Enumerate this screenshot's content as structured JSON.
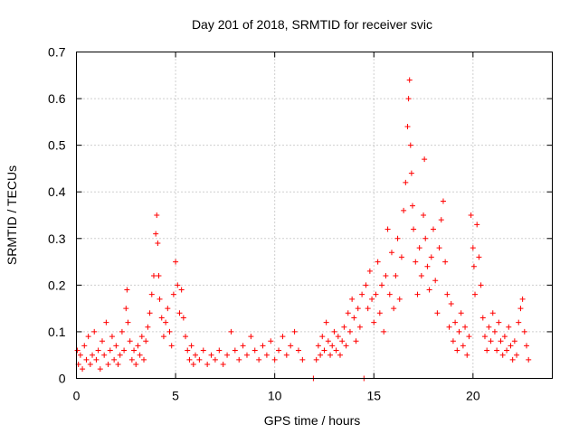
{
  "chart_data": {
    "type": "scatter",
    "title": "Day 201 of 2018, SRMTID for receiver svic",
    "xlabel": "GPS time / hours",
    "ylabel": "SRMTID / TECUs",
    "xlim": [
      0,
      24
    ],
    "ylim": [
      0,
      0.7
    ],
    "xticks": [
      "0",
      "5",
      "10",
      "15",
      "20"
    ],
    "yticks": [
      "0",
      "0.1",
      "0.2",
      "0.3",
      "0.4",
      "0.5",
      "0.6",
      "0.7"
    ],
    "xtick_values": [
      0,
      5,
      10,
      15,
      20
    ],
    "ytick_values": [
      0,
      0.1,
      0.2,
      0.3,
      0.4,
      0.5,
      0.6,
      0.7
    ],
    "grid": true,
    "marker": "+",
    "color": "#ff0000",
    "series": [
      {
        "name": "svic",
        "points": [
          [
            0.05,
            0.06
          ],
          [
            0.1,
            0.03
          ],
          [
            0.2,
            0.05
          ],
          [
            0.3,
            0.02
          ],
          [
            0.4,
            0.07
          ],
          [
            0.5,
            0.04
          ],
          [
            0.6,
            0.09
          ],
          [
            0.7,
            0.03
          ],
          [
            0.8,
            0.05
          ],
          [
            0.9,
            0.1
          ],
          [
            1.0,
            0.04
          ],
          [
            1.1,
            0.06
          ],
          [
            1.2,
            0.02
          ],
          [
            1.3,
            0.08
          ],
          [
            1.4,
            0.05
          ],
          [
            1.5,
            0.12
          ],
          [
            1.6,
            0.03
          ],
          [
            1.7,
            0.06
          ],
          [
            1.8,
            0.09
          ],
          [
            1.9,
            0.04
          ],
          [
            2.0,
            0.07
          ],
          [
            2.1,
            0.03
          ],
          [
            2.2,
            0.05
          ],
          [
            2.3,
            0.1
          ],
          [
            2.4,
            0.06
          ],
          [
            2.5,
            0.15
          ],
          [
            2.55,
            0.19
          ],
          [
            2.6,
            0.12
          ],
          [
            2.7,
            0.08
          ],
          [
            2.8,
            0.04
          ],
          [
            2.9,
            0.06
          ],
          [
            3.0,
            0.03
          ],
          [
            3.1,
            0.07
          ],
          [
            3.2,
            0.05
          ],
          [
            3.3,
            0.09
          ],
          [
            3.4,
            0.04
          ],
          [
            3.5,
            0.08
          ],
          [
            3.6,
            0.11
          ],
          [
            3.7,
            0.14
          ],
          [
            3.8,
            0.18
          ],
          [
            3.9,
            0.22
          ],
          [
            4.0,
            0.31
          ],
          [
            4.05,
            0.35
          ],
          [
            4.1,
            0.29
          ],
          [
            4.15,
            0.22
          ],
          [
            4.2,
            0.17
          ],
          [
            4.3,
            0.13
          ],
          [
            4.4,
            0.09
          ],
          [
            4.5,
            0.12
          ],
          [
            4.6,
            0.15
          ],
          [
            4.7,
            0.1
          ],
          [
            4.8,
            0.07
          ],
          [
            4.9,
            0.18
          ],
          [
            5.0,
            0.25
          ],
          [
            5.1,
            0.2
          ],
          [
            5.2,
            0.14
          ],
          [
            5.3,
            0.19
          ],
          [
            5.4,
            0.13
          ],
          [
            5.5,
            0.09
          ],
          [
            5.6,
            0.06
          ],
          [
            5.7,
            0.04
          ],
          [
            5.8,
            0.07
          ],
          [
            5.9,
            0.03
          ],
          [
            6.0,
            0.05
          ],
          [
            6.2,
            0.04
          ],
          [
            6.4,
            0.06
          ],
          [
            6.6,
            0.03
          ],
          [
            6.8,
            0.05
          ],
          [
            7.0,
            0.04
          ],
          [
            7.2,
            0.06
          ],
          [
            7.4,
            0.03
          ],
          [
            7.6,
            0.05
          ],
          [
            7.8,
            0.1
          ],
          [
            8.0,
            0.06
          ],
          [
            8.2,
            0.04
          ],
          [
            8.4,
            0.07
          ],
          [
            8.6,
            0.05
          ],
          [
            8.8,
            0.09
          ],
          [
            9.0,
            0.06
          ],
          [
            9.2,
            0.04
          ],
          [
            9.4,
            0.07
          ],
          [
            9.6,
            0.05
          ],
          [
            9.8,
            0.08
          ],
          [
            10.0,
            0.04
          ],
          [
            10.2,
            0.06
          ],
          [
            10.4,
            0.09
          ],
          [
            10.6,
            0.05
          ],
          [
            10.8,
            0.07
          ],
          [
            11.0,
            0.1
          ],
          [
            11.2,
            0.06
          ],
          [
            11.4,
            0.04
          ],
          [
            11.95,
            0.0
          ],
          [
            12.1,
            0.04
          ],
          [
            12.2,
            0.07
          ],
          [
            12.3,
            0.05
          ],
          [
            12.4,
            0.09
          ],
          [
            12.5,
            0.06
          ],
          [
            12.6,
            0.12
          ],
          [
            12.7,
            0.08
          ],
          [
            12.8,
            0.05
          ],
          [
            12.9,
            0.07
          ],
          [
            13.0,
            0.1
          ],
          [
            13.1,
            0.06
          ],
          [
            13.2,
            0.09
          ],
          [
            13.3,
            0.05
          ],
          [
            13.4,
            0.08
          ],
          [
            13.5,
            0.11
          ],
          [
            13.6,
            0.07
          ],
          [
            13.7,
            0.14
          ],
          [
            13.8,
            0.1
          ],
          [
            13.9,
            0.17
          ],
          [
            14.0,
            0.13
          ],
          [
            14.1,
            0.08
          ],
          [
            14.2,
            0.15
          ],
          [
            14.3,
            0.11
          ],
          [
            14.4,
            0.18
          ],
          [
            14.5,
            0.0
          ],
          [
            14.6,
            0.2
          ],
          [
            14.7,
            0.15
          ],
          [
            14.8,
            0.23
          ],
          [
            14.9,
            0.17
          ],
          [
            15.0,
            0.12
          ],
          [
            15.1,
            0.18
          ],
          [
            15.2,
            0.25
          ],
          [
            15.3,
            0.14
          ],
          [
            15.4,
            0.2
          ],
          [
            15.5,
            0.1
          ],
          [
            15.6,
            0.22
          ],
          [
            15.7,
            0.32
          ],
          [
            15.8,
            0.18
          ],
          [
            15.9,
            0.27
          ],
          [
            16.0,
            0.15
          ],
          [
            16.1,
            0.22
          ],
          [
            16.2,
            0.3
          ],
          [
            16.3,
            0.17
          ],
          [
            16.4,
            0.26
          ],
          [
            16.5,
            0.36
          ],
          [
            16.6,
            0.42
          ],
          [
            16.7,
            0.54
          ],
          [
            16.75,
            0.6
          ],
          [
            16.8,
            0.64
          ],
          [
            16.85,
            0.5
          ],
          [
            16.9,
            0.44
          ],
          [
            16.95,
            0.37
          ],
          [
            17.0,
            0.32
          ],
          [
            17.1,
            0.25
          ],
          [
            17.2,
            0.18
          ],
          [
            17.3,
            0.28
          ],
          [
            17.4,
            0.22
          ],
          [
            17.5,
            0.35
          ],
          [
            17.55,
            0.47
          ],
          [
            17.6,
            0.3
          ],
          [
            17.7,
            0.24
          ],
          [
            17.8,
            0.19
          ],
          [
            17.9,
            0.26
          ],
          [
            18.0,
            0.32
          ],
          [
            18.1,
            0.21
          ],
          [
            18.2,
            0.14
          ],
          [
            18.3,
            0.28
          ],
          [
            18.4,
            0.34
          ],
          [
            18.5,
            0.38
          ],
          [
            18.6,
            0.25
          ],
          [
            18.7,
            0.18
          ],
          [
            18.8,
            0.11
          ],
          [
            18.9,
            0.16
          ],
          [
            19.0,
            0.08
          ],
          [
            19.1,
            0.12
          ],
          [
            19.2,
            0.06
          ],
          [
            19.3,
            0.1
          ],
          [
            19.4,
            0.14
          ],
          [
            19.5,
            0.07
          ],
          [
            19.6,
            0.11
          ],
          [
            19.7,
            0.05
          ],
          [
            19.8,
            0.09
          ],
          [
            19.9,
            0.35
          ],
          [
            20.0,
            0.28
          ],
          [
            20.05,
            0.24
          ],
          [
            20.1,
            0.18
          ],
          [
            20.2,
            0.33
          ],
          [
            20.3,
            0.26
          ],
          [
            20.4,
            0.2
          ],
          [
            20.5,
            0.13
          ],
          [
            20.6,
            0.09
          ],
          [
            20.7,
            0.06
          ],
          [
            20.8,
            0.11
          ],
          [
            20.9,
            0.08
          ],
          [
            21.0,
            0.14
          ],
          [
            21.1,
            0.1
          ],
          [
            21.2,
            0.06
          ],
          [
            21.3,
            0.12
          ],
          [
            21.4,
            0.08
          ],
          [
            21.5,
            0.05
          ],
          [
            21.6,
            0.09
          ],
          [
            21.7,
            0.06
          ],
          [
            21.8,
            0.11
          ],
          [
            21.9,
            0.07
          ],
          [
            22.0,
            0.04
          ],
          [
            22.1,
            0.08
          ],
          [
            22.2,
            0.05
          ],
          [
            22.3,
            0.12
          ],
          [
            22.4,
            0.15
          ],
          [
            22.5,
            0.17
          ],
          [
            22.6,
            0.1
          ],
          [
            22.7,
            0.07
          ],
          [
            22.8,
            0.04
          ]
        ]
      }
    ]
  }
}
